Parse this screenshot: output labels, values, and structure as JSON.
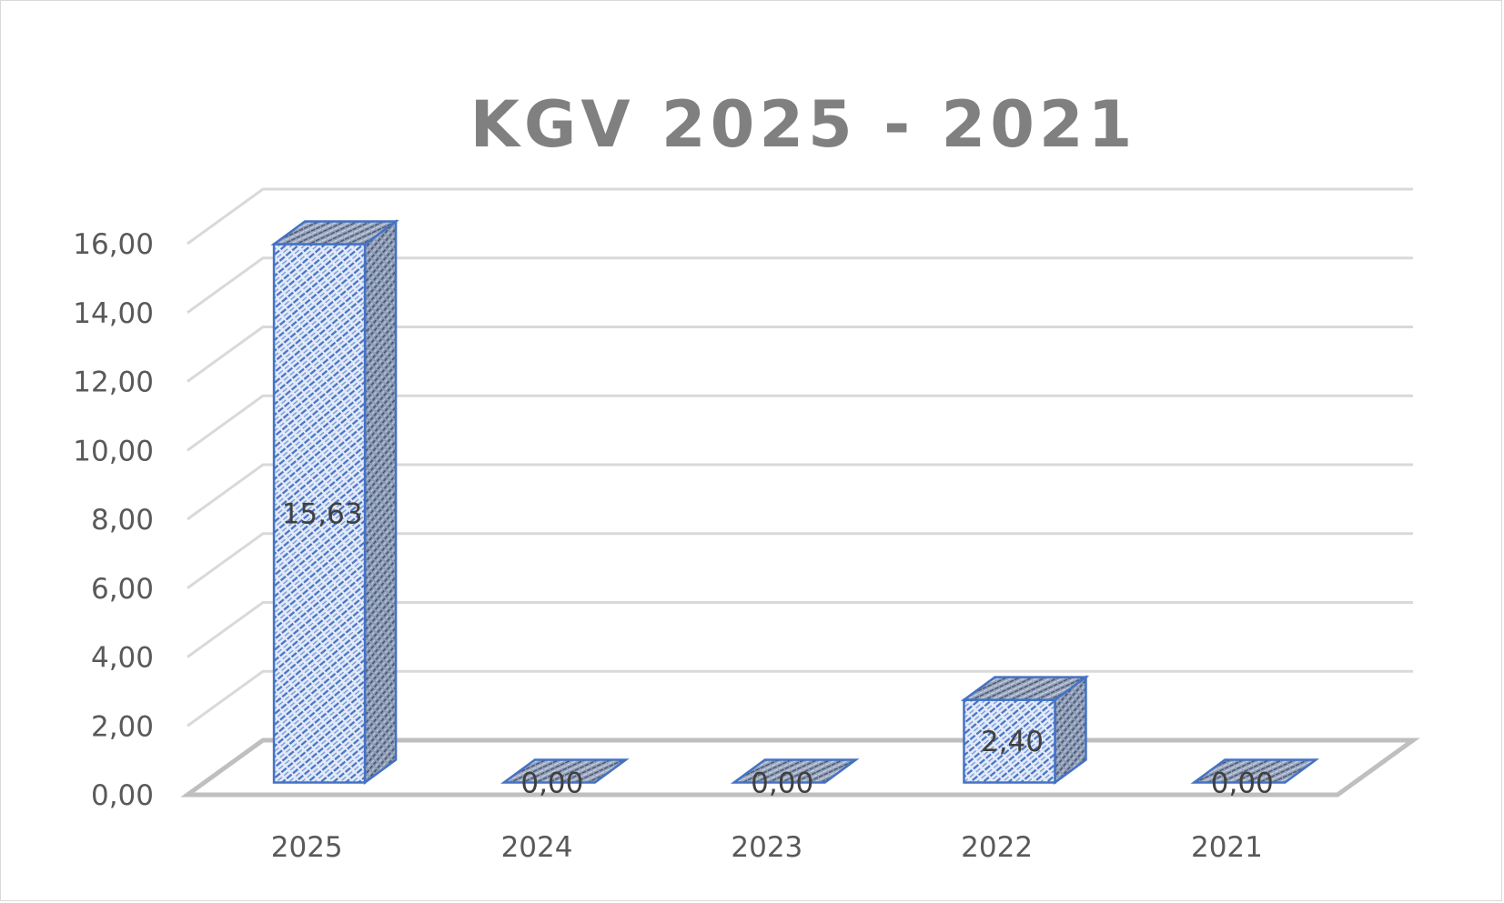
{
  "chart_data": {
    "type": "bar",
    "title": "KGV 2025 - 2021",
    "categories": [
      "2025",
      "2024",
      "2023",
      "2022",
      "2021"
    ],
    "values": [
      15.63,
      0.0,
      0.0,
      2.4,
      0.0
    ],
    "data_labels": [
      "15,63",
      "0,00",
      "0,00",
      "2,40",
      "0,00"
    ],
    "y_ticks": [
      {
        "value": 0,
        "label": "0,00"
      },
      {
        "value": 2,
        "label": "2,00"
      },
      {
        "value": 4,
        "label": "4,00"
      },
      {
        "value": 6,
        "label": "6,00"
      },
      {
        "value": 8,
        "label": "8,00"
      },
      {
        "value": 10,
        "label": "10,00"
      },
      {
        "value": 12,
        "label": "12,00"
      },
      {
        "value": 14,
        "label": "14,00"
      },
      {
        "value": 16,
        "label": "16,00"
      }
    ],
    "ylim": [
      0,
      16
    ],
    "xlabel": "",
    "ylabel": "",
    "grid": true,
    "legend": "none",
    "style": "3d-clustered-column",
    "colors": {
      "bar_front": "#dde6f7",
      "bar_pattern": "#4472c4",
      "bar_side": "#8497b0",
      "bar_outline": "#4472c4",
      "grid": "#d9d9d9",
      "floor": "#bfbfbf",
      "title": "#808080",
      "tick": "#595959"
    }
  }
}
